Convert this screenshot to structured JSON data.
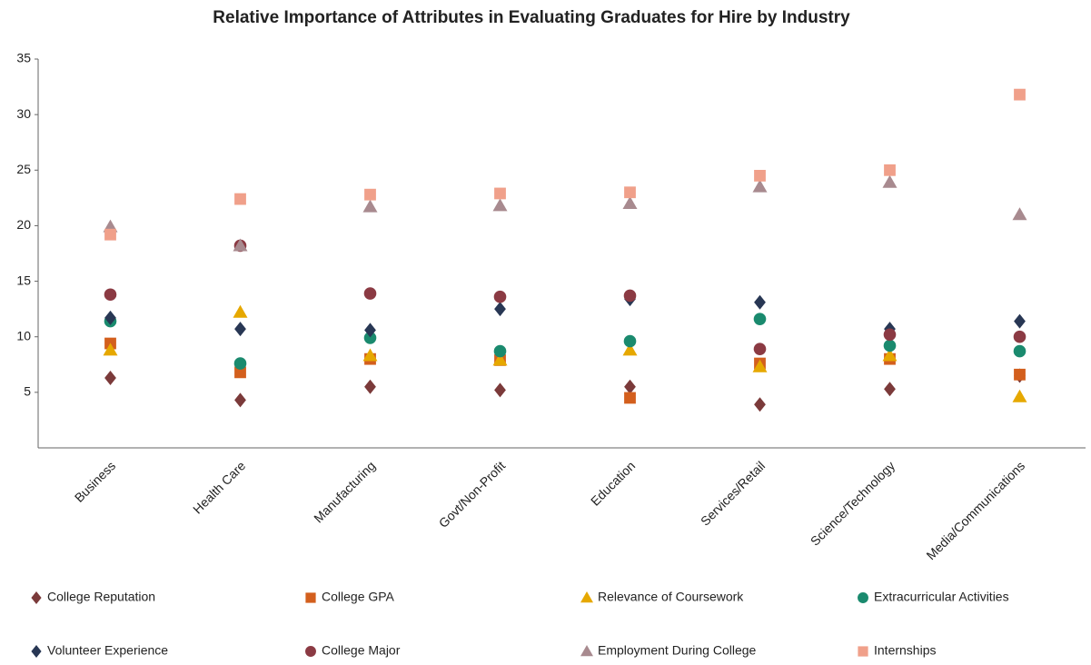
{
  "chart_data": {
    "type": "scatter",
    "title": "Relative Importance of Attributes in Evaluating Graduates for Hire by Industry",
    "categories": [
      "Business",
      "Health Care",
      "Manufacturing",
      "Govt/Non-Profit",
      "Education",
      "Services/Retail",
      "Science/Technology",
      "Media/Communications"
    ],
    "ylim": [
      0,
      35
    ],
    "yticks": [
      5,
      10,
      15,
      20,
      25,
      30,
      35
    ],
    "series": [
      {
        "name": "College Reputation",
        "color": "#7b3a3a",
        "marker": "diamond",
        "values": [
          6.3,
          4.3,
          5.5,
          5.2,
          5.5,
          3.9,
          5.3,
          6.5
        ]
      },
      {
        "name": "College GPA",
        "color": "#d35f1d",
        "marker": "square",
        "values": [
          9.4,
          6.8,
          8.0,
          7.9,
          4.5,
          7.6,
          8.0,
          6.6
        ]
      },
      {
        "name": "Relevance of Coursework",
        "color": "#e6a800",
        "marker": "triangle",
        "values": [
          8.8,
          12.2,
          8.3,
          7.9,
          8.8,
          7.3,
          8.3,
          4.6
        ]
      },
      {
        "name": "Extracurricular Activities",
        "color": "#1a8a6e",
        "marker": "circle",
        "values": [
          11.4,
          7.6,
          9.9,
          8.7,
          9.6,
          11.6,
          9.2,
          8.7
        ]
      },
      {
        "name": "Volunteer Experience",
        "color": "#283754",
        "marker": "diamond",
        "values": [
          11.7,
          10.7,
          10.6,
          12.5,
          13.4,
          13.1,
          10.7,
          11.4
        ]
      },
      {
        "name": "College Major",
        "color": "#8b3a43",
        "marker": "circle",
        "values": [
          13.8,
          18.2,
          13.9,
          13.6,
          13.7,
          8.9,
          10.2,
          10.0
        ]
      },
      {
        "name": "Employment During College",
        "color": "#a88a8f",
        "marker": "triangle",
        "values": [
          19.9,
          18.2,
          21.7,
          21.8,
          22.0,
          23.5,
          23.9,
          21.0
        ]
      },
      {
        "name": "Internships",
        "color": "#f0a08a",
        "marker": "square",
        "values": [
          19.2,
          22.4,
          22.8,
          22.9,
          23.0,
          24.5,
          25.0,
          31.8
        ]
      }
    ]
  }
}
